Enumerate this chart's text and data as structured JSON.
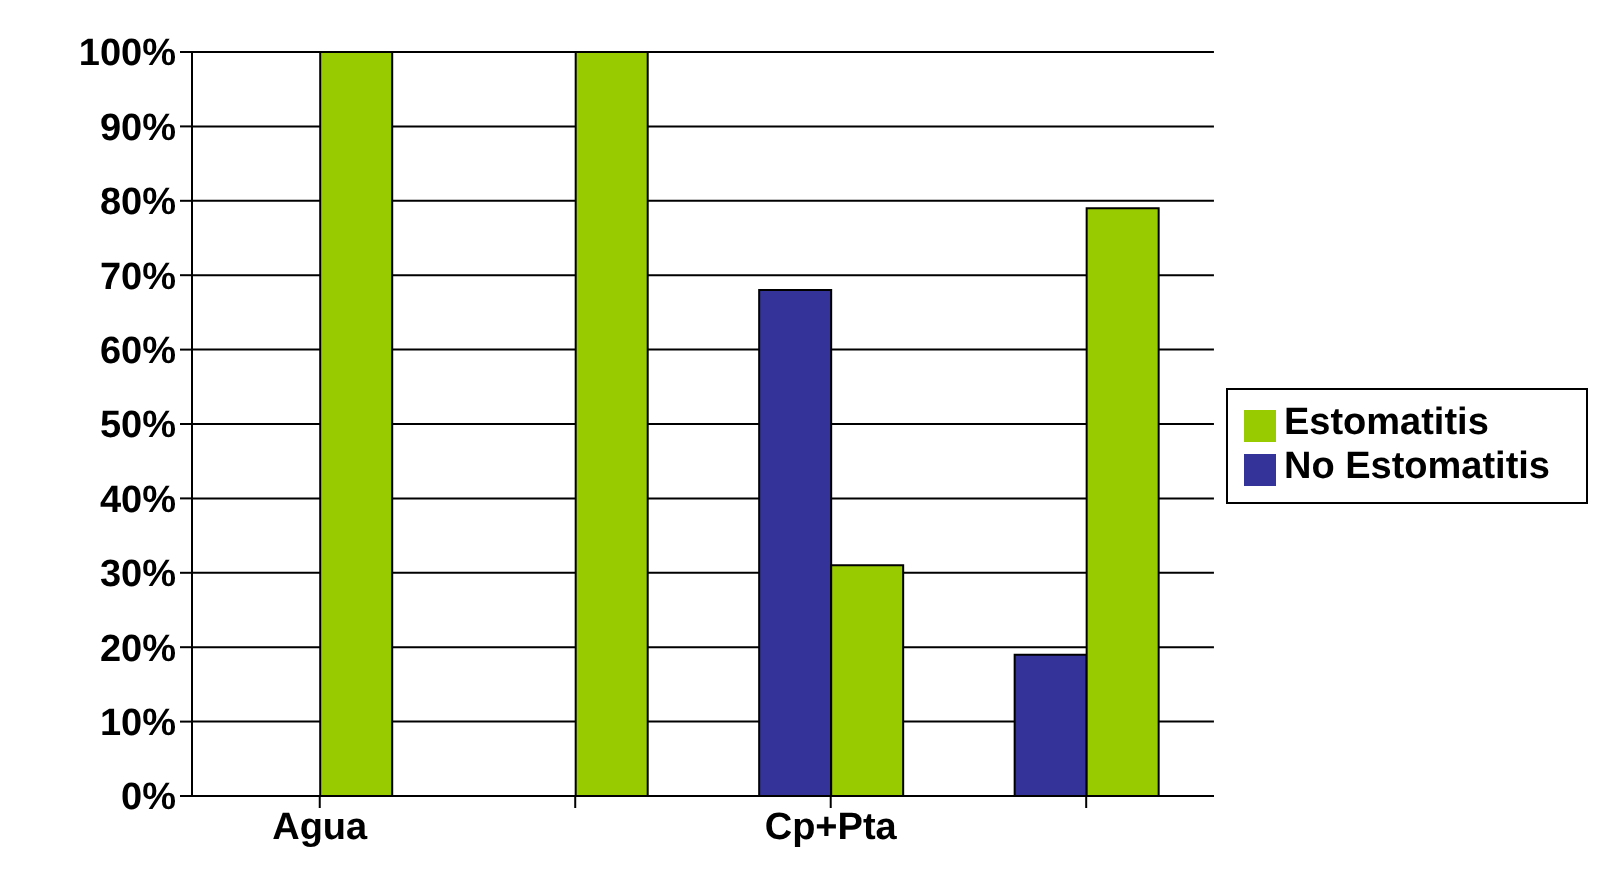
{
  "chart_data": {
    "type": "bar",
    "categories": [
      "Agua",
      null,
      "Cp+Pta",
      null
    ],
    "series": [
      {
        "name": "No Estomatitis",
        "color": "#333399",
        "values": [
          0,
          0,
          68,
          19
        ]
      },
      {
        "name": "Estomatitis",
        "color": "#99cc00",
        "values": [
          100,
          100,
          31,
          79
        ]
      }
    ],
    "ylim": [
      0,
      100
    ],
    "yticks": [
      {
        "value": 0,
        "label": "0%"
      },
      {
        "value": 10,
        "label": "10%"
      },
      {
        "value": 20,
        "label": "20%"
      },
      {
        "value": 30,
        "label": "30%"
      },
      {
        "value": 40,
        "label": "40%"
      },
      {
        "value": 50,
        "label": "50%"
      },
      {
        "value": 60,
        "label": "60%"
      },
      {
        "value": 70,
        "label": "70%"
      },
      {
        "value": 80,
        "label": "80%"
      },
      {
        "value": 90,
        "label": "90%"
      },
      {
        "value": 100,
        "label": "100%"
      }
    ],
    "grid": "y",
    "legend": "right"
  }
}
